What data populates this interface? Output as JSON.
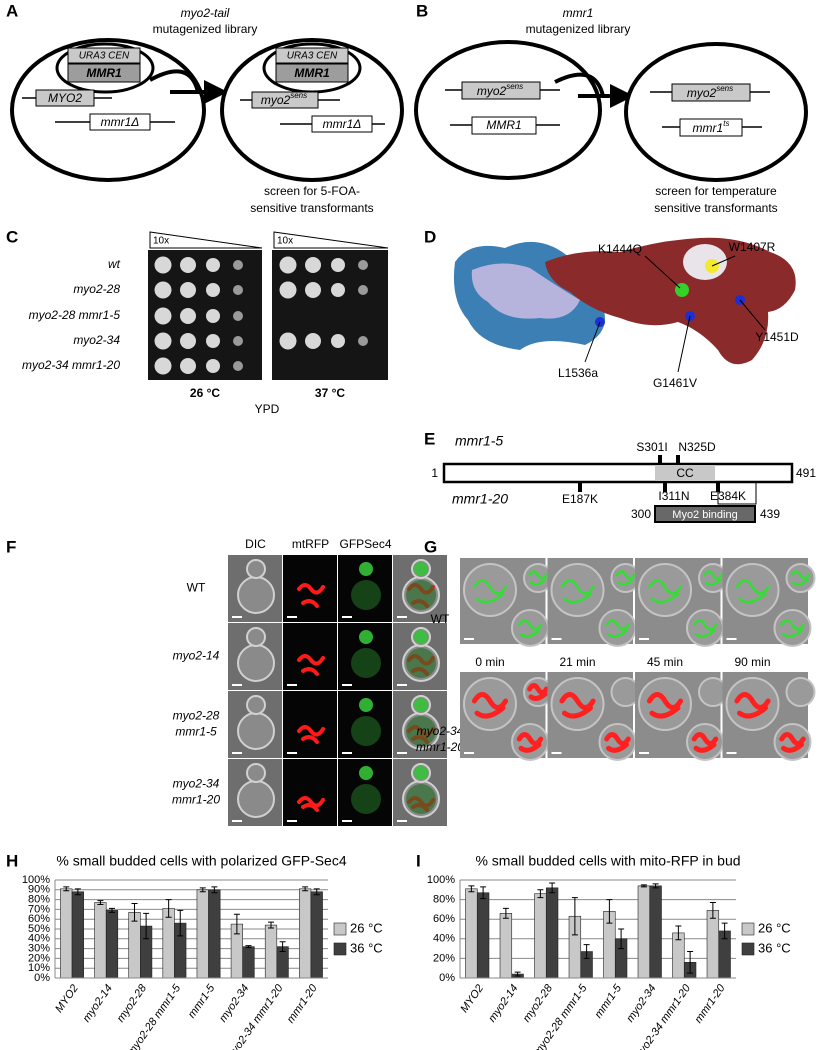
{
  "panel_labels": [
    "A",
    "B",
    "C",
    "D",
    "E",
    "F",
    "G",
    "H",
    "I"
  ],
  "panel_a": {
    "title_gene": "myo2-tail",
    "title_rest": "mutagenized library",
    "left": {
      "plasmid": "URA3 CEN",
      "plasmid_gene": "MMR1",
      "chrom1": "MYO2",
      "chrom2": "mmr1Δ"
    },
    "right": {
      "plasmid": "URA3 CEN",
      "plasmid_gene": "MMR1",
      "chrom1": "myo2",
      "chrom1_sup": "sens",
      "chrom2": "mmr1Δ"
    },
    "caption": [
      "screen for 5-FOA-",
      "sensitive transformants"
    ]
  },
  "panel_b": {
    "title_gene": "mmr1",
    "title_rest": "mutagenized library",
    "left": {
      "chrom1": "myo2",
      "chrom1_sup": "sens",
      "chrom2": "MMR1"
    },
    "right": {
      "chrom1": "myo2",
      "chrom1_sup": "sens",
      "chrom2": "mmr1",
      "chrom2_sup": "ts"
    },
    "caption": [
      "screen for temperature",
      "sensitive transformants"
    ]
  },
  "panel_c": {
    "strains": [
      "wt",
      "myo2-28",
      "myo2-28 mmr1-5",
      "myo2-34",
      "myo2-34 mmr1-20"
    ],
    "dilution": [
      "10x",
      "10x"
    ],
    "temps": [
      "26 °C",
      "37 °C"
    ],
    "medium": "YPD"
  },
  "panel_d": {
    "mutations": [
      "K1444Q",
      "W1407R",
      "Y1451D",
      "G1461V",
      "L1536a"
    ]
  },
  "panel_e": {
    "alleles": [
      "mmr1-5",
      "mmr1-20"
    ],
    "mutations_top": [
      "S301I",
      "N325D"
    ],
    "mutations_bottom": [
      "E187K",
      "I311N",
      "E384K"
    ],
    "domain": "CC",
    "start": "1",
    "end": "491",
    "binding": "Myo2 binding",
    "binding_start": "300",
    "binding_end": "439"
  },
  "panel_f": {
    "columns": [
      "DIC",
      "mtRFP",
      "GFPSec4"
    ],
    "rows": [
      [
        "WT"
      ],
      [
        "myo2-14"
      ],
      [
        "myo2-28",
        "mmr1-5"
      ],
      [
        "myo2-34",
        "mmr1-20"
      ]
    ]
  },
  "panel_g": {
    "rows": [
      [
        "WT"
      ],
      [
        "myo2-34",
        "mmr1-20"
      ]
    ],
    "times": [
      "0 min",
      "21 min",
      "45 min",
      "90 min"
    ]
  },
  "chart_data": [
    {
      "type": "bar",
      "title": "% small budded cells with polarized GFP-Sec4",
      "categories": [
        "MYO2",
        "myo2-14",
        "myo2-28",
        "myo2-28 mmr1-5",
        "mmr1-5",
        "myo2-34",
        "myo2-34 mmr1-20",
        "mmr1-20"
      ],
      "series": [
        {
          "name": "26 °C",
          "color": "#c8c8c8",
          "values": [
            91,
            77,
            67,
            71,
            90,
            55,
            54,
            91
          ],
          "errors": [
            2,
            2,
            9,
            9,
            2,
            10,
            3,
            2
          ]
        },
        {
          "name": "36 °C",
          "color": "#3f3f3f",
          "values": [
            88,
            69,
            53,
            56,
            90,
            32,
            32,
            88
          ],
          "errors": [
            3,
            2,
            13,
            13,
            3,
            1,
            5,
            3
          ]
        }
      ],
      "ylim": [
        0,
        100
      ],
      "yticks": [
        {
          "value": 0,
          "label": "0%"
        },
        {
          "value": 10,
          "label": "10%"
        },
        {
          "value": 20,
          "label": "20%"
        },
        {
          "value": 30,
          "label": "30%"
        },
        {
          "value": 40,
          "label": "40%"
        },
        {
          "value": 50,
          "label": "50%"
        },
        {
          "value": 60,
          "label": "60%"
        },
        {
          "value": 70,
          "label": "70%"
        },
        {
          "value": 80,
          "label": "80%"
        },
        {
          "value": 90,
          "label": "90%"
        },
        {
          "value": 100,
          "label": "100%"
        }
      ],
      "grid": true,
      "legend": "right"
    },
    {
      "type": "bar",
      "title": "% small budded cells with mito-RFP in bud",
      "categories": [
        "MYO2",
        "myo2-14",
        "myo2-28",
        "myo2-28 mmr1-5",
        "mmr1-5",
        "myo2-34",
        "myo2-34 mmr1-20",
        "mmr1-20"
      ],
      "series": [
        {
          "name": "26 °C",
          "color": "#c8c8c8",
          "values": [
            91,
            66,
            86,
            63,
            68,
            94,
            46,
            69
          ],
          "errors": [
            3,
            5,
            4,
            19,
            12,
            1,
            7,
            8
          ]
        },
        {
          "name": "36 °C",
          "color": "#3f3f3f",
          "values": [
            87,
            4,
            92,
            27,
            40,
            94,
            16,
            48
          ],
          "errors": [
            6,
            2,
            5,
            7,
            10,
            2,
            11,
            8
          ]
        }
      ],
      "ylim": [
        0,
        100
      ],
      "yticks": [
        {
          "value": 0,
          "label": "0%"
        },
        {
          "value": 20,
          "label": "20%"
        },
        {
          "value": 40,
          "label": "40%"
        },
        {
          "value": 60,
          "label": "60%"
        },
        {
          "value": 80,
          "label": "80%"
        },
        {
          "value": 100,
          "label": "100%"
        }
      ],
      "grid": true,
      "legend": "right"
    }
  ]
}
